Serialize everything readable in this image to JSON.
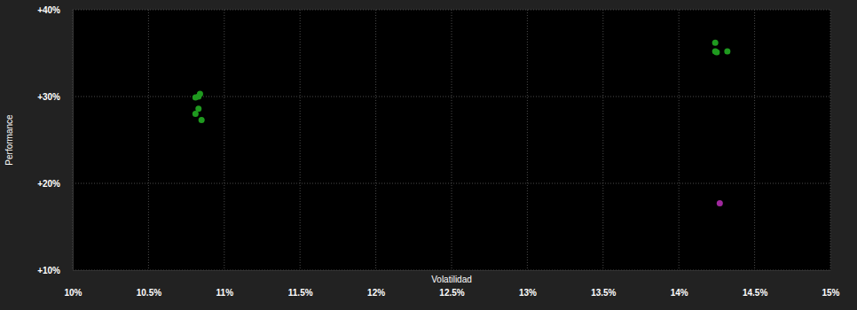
{
  "chart_data": {
    "type": "scatter",
    "x_label": "Volatilidad",
    "y_label": "Performance",
    "xlim": [
      10,
      15
    ],
    "ylim": [
      10,
      40
    ],
    "xticks": [
      {
        "value": 10,
        "label": "10%"
      },
      {
        "value": 10.5,
        "label": "10.5%"
      },
      {
        "value": 11,
        "label": "11%"
      },
      {
        "value": 11.5,
        "label": "11.5%"
      },
      {
        "value": 12,
        "label": "12%"
      },
      {
        "value": 12.5,
        "label": "12.5%"
      },
      {
        "value": 13,
        "label": "13%"
      },
      {
        "value": 13.5,
        "label": "13.5%"
      },
      {
        "value": 14,
        "label": "14%"
      },
      {
        "value": 14.5,
        "label": "14.5%"
      },
      {
        "value": 15,
        "label": "15%"
      }
    ],
    "yticks": [
      {
        "value": 10,
        "label": "+10%"
      },
      {
        "value": 20,
        "label": "+20%"
      },
      {
        "value": 30,
        "label": "+30%"
      },
      {
        "value": 40,
        "label": "+40%"
      }
    ],
    "grid": true,
    "series": [
      {
        "color": "#1f9a1f",
        "x": [
          10.81,
          10.84,
          10.83,
          10.83,
          10.81,
          10.85,
          14.24,
          14.25,
          14.24,
          14.32
        ],
        "values": [
          29.9,
          30.3,
          30.0,
          28.6,
          28.0,
          27.3,
          36.2,
          35.1,
          35.2,
          35.2
        ]
      },
      {
        "color": "#a0289e",
        "x": [
          14.27
        ],
        "values": [
          17.7
        ]
      }
    ]
  }
}
